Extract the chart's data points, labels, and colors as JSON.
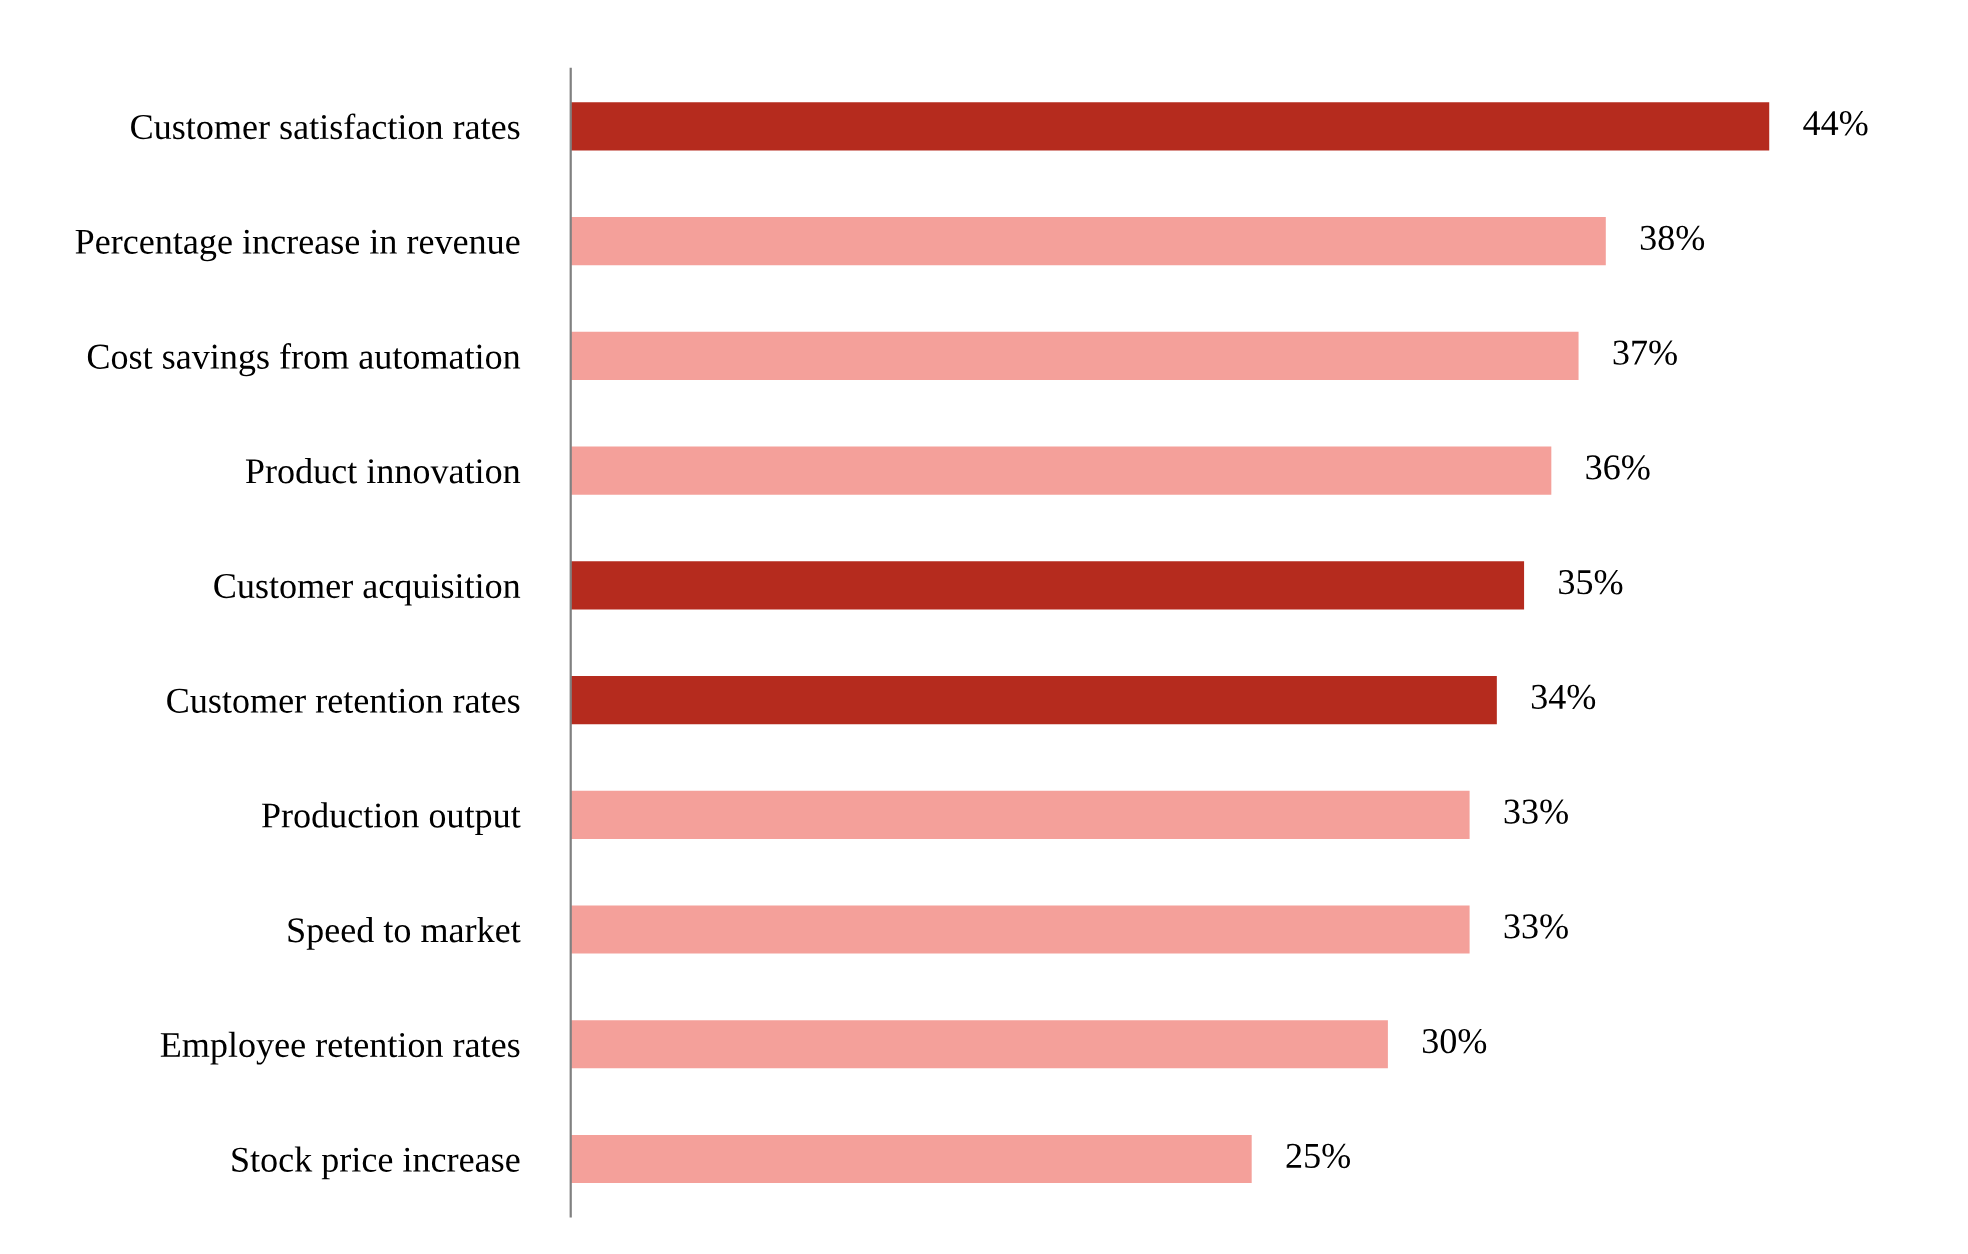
{
  "chart_data": {
    "type": "bar",
    "orientation": "horizontal",
    "categories": [
      "Customer satisfaction rates",
      "Percentage increase in revenue",
      "Cost savings from automation",
      "Product innovation",
      "Customer acquisition",
      "Customer retention rates",
      "Production output",
      "Speed to market",
      "Employee retention rates",
      "Stock price increase"
    ],
    "values": [
      44,
      38,
      37,
      36,
      35,
      34,
      33,
      33,
      30,
      25
    ],
    "value_labels": [
      "44%",
      "38%",
      "37%",
      "36%",
      "35%",
      "34%",
      "33%",
      "33%",
      "30%",
      "25%"
    ],
    "colors": [
      "#b52b1e",
      "#f4a09a",
      "#f4a09a",
      "#f4a09a",
      "#b52b1e",
      "#b52b1e",
      "#f4a09a",
      "#f4a09a",
      "#f4a09a",
      "#f4a09a"
    ],
    "grid": false,
    "legend": false
  }
}
